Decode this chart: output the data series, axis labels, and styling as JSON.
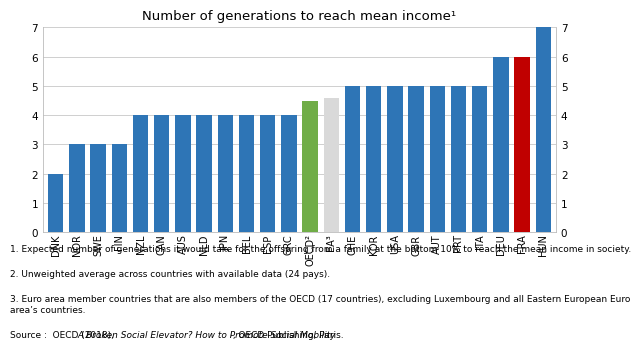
{
  "title": "Number of generations to reach mean income¹",
  "categories": [
    "DNK",
    "NOR",
    "SWE",
    "FIN",
    "NZL",
    "CAN",
    "AUS",
    "NLD",
    "JPN",
    "BEL",
    "ESP",
    "GRC",
    "OECD²",
    "EA³",
    "CHE",
    "KOR",
    "USA",
    "GBR",
    "AUT",
    "PRT",
    "ITA",
    "DEU",
    "FRA",
    "HUN"
  ],
  "values": [
    2,
    3,
    3,
    3,
    4,
    4,
    4,
    4,
    4,
    4,
    4,
    4,
    4.5,
    4.6,
    5,
    5,
    5,
    5,
    5,
    5,
    5,
    6,
    6,
    7
  ],
  "colors": [
    "#2e75b6",
    "#2e75b6",
    "#2e75b6",
    "#2e75b6",
    "#2e75b6",
    "#2e75b6",
    "#2e75b6",
    "#2e75b6",
    "#2e75b6",
    "#2e75b6",
    "#2e75b6",
    "#2e75b6",
    "#70ad47",
    "#d9d9d9",
    "#2e75b6",
    "#2e75b6",
    "#2e75b6",
    "#2e75b6",
    "#2e75b6",
    "#2e75b6",
    "#2e75b6",
    "#2e75b6",
    "#c00000",
    "#2e75b6"
  ],
  "ylim": [
    0,
    7
  ],
  "yticks": [
    0,
    1,
    2,
    3,
    4,
    5,
    6,
    7
  ],
  "footnote1": "1. Expected number of generations it would take for the offspring from a family at the bottom 10% to reach the mean income in society.",
  "footnote2": "2. Unweighted average across countries with available data (24 pays).",
  "footnote3": "3. Euro area member countries that are also members of the OECD (17 countries), excluding Luxembourg and all Eastern European Euro\narea’s countries.",
  "source_plain": "Source :  OECD (2018), ",
  "source_italic": "A Broken Social Elevator? How to Promote Social Mobility",
  "source_end": " , OECD Publishing, Paris.",
  "bg_color": "#ffffff",
  "bar_edge_color": "none",
  "grid_color": "#c8c8c8"
}
